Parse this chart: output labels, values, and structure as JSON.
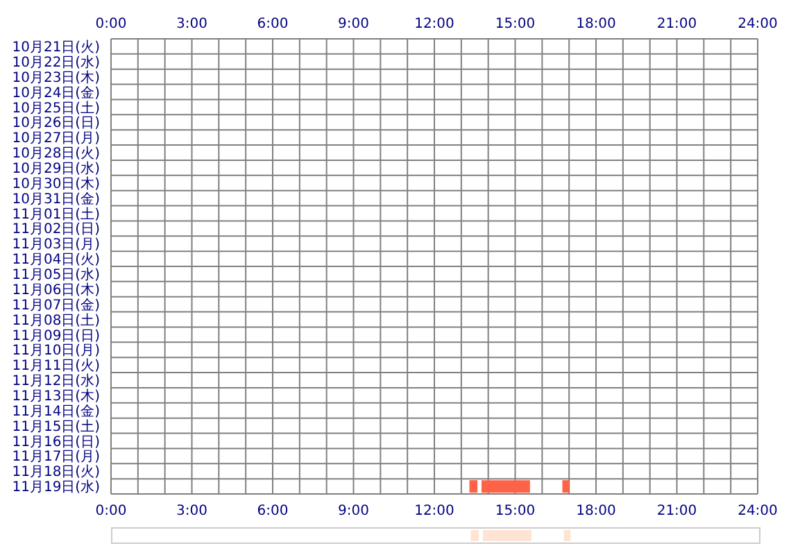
{
  "chart_data": [
    {
      "type": "bar",
      "orientation": "horizontal",
      "grid": true,
      "categories": [
        "10月21日(火)",
        "10月22日(水)",
        "10月23日(木)",
        "10月24日(金)",
        "10月25日(土)",
        "10月26日(日)",
        "10月27日(月)",
        "10月28日(火)",
        "10月29日(水)",
        "10月30日(木)",
        "10月31日(金)",
        "11月01日(土)",
        "11月02日(日)",
        "11月03日(月)",
        "11月04日(火)",
        "11月05日(水)",
        "11月06日(木)",
        "11月07日(金)",
        "11月08日(土)",
        "11月09日(日)",
        "11月10日(月)",
        "11月11日(火)",
        "11月12日(水)",
        "11月13日(木)",
        "11月14日(金)",
        "11月15日(土)",
        "11月16日(日)",
        "11月17日(月)",
        "11月18日(火)",
        "11月19日(水)"
      ],
      "xlim": [
        0,
        24
      ],
      "xticks": [
        {
          "value": 0,
          "label": "0:00"
        },
        {
          "value": 1,
          "label": null
        },
        {
          "value": 2,
          "label": null
        },
        {
          "value": 3,
          "label": "3:00"
        },
        {
          "value": 4,
          "label": null
        },
        {
          "value": 5,
          "label": null
        },
        {
          "value": 6,
          "label": "6:00"
        },
        {
          "value": 7,
          "label": null
        },
        {
          "value": 8,
          "label": null
        },
        {
          "value": 9,
          "label": "9:00"
        },
        {
          "value": 10,
          "label": null
        },
        {
          "value": 11,
          "label": null
        },
        {
          "value": 12,
          "label": "12:00"
        },
        {
          "value": 13,
          "label": null
        },
        {
          "value": 14,
          "label": null
        },
        {
          "value": 15,
          "label": "15:00"
        },
        {
          "value": 16,
          "label": null
        },
        {
          "value": 17,
          "label": null
        },
        {
          "value": 18,
          "label": "18:00"
        },
        {
          "value": 19,
          "label": null
        },
        {
          "value": 20,
          "label": null
        },
        {
          "value": 21,
          "label": "21:00"
        },
        {
          "value": 22,
          "label": null
        },
        {
          "value": 23,
          "label": null
        },
        {
          "value": 24,
          "label": "24:00"
        }
      ],
      "x2lim": [
        0,
        24
      ],
      "x2ticks": [
        {
          "value": 0,
          "label": "0:00"
        },
        {
          "value": 3,
          "label": "3:00"
        },
        {
          "value": 6,
          "label": "6:00"
        },
        {
          "value": 9,
          "label": "9:00"
        },
        {
          "value": 12,
          "label": "12:00"
        },
        {
          "value": 15,
          "label": "15:00"
        },
        {
          "value": 18,
          "label": "18:00"
        },
        {
          "value": 21,
          "label": "21:00"
        },
        {
          "value": 24,
          "label": "24:00"
        }
      ],
      "series": [
        {
          "color": "#ff6347",
          "base": [
            null,
            null,
            null,
            null,
            null,
            null,
            null,
            null,
            null,
            null,
            null,
            null,
            null,
            null,
            null,
            null,
            null,
            null,
            null,
            null,
            null,
            null,
            null,
            null,
            null,
            null,
            null,
            null,
            null,
            13.3
          ],
          "values": [
            null,
            null,
            null,
            null,
            null,
            null,
            null,
            null,
            null,
            null,
            null,
            null,
            null,
            null,
            null,
            null,
            null,
            null,
            null,
            null,
            null,
            null,
            null,
            null,
            null,
            null,
            null,
            null,
            null,
            0.3
          ]
        },
        {
          "color": "#ff6347",
          "base": [
            null,
            null,
            null,
            null,
            null,
            null,
            null,
            null,
            null,
            null,
            null,
            null,
            null,
            null,
            null,
            null,
            null,
            null,
            null,
            null,
            null,
            null,
            null,
            null,
            null,
            null,
            null,
            null,
            null,
            13.75
          ],
          "values": [
            null,
            null,
            null,
            null,
            null,
            null,
            null,
            null,
            null,
            null,
            null,
            null,
            null,
            null,
            null,
            null,
            null,
            null,
            null,
            null,
            null,
            null,
            null,
            null,
            null,
            null,
            null,
            null,
            null,
            1.8
          ]
        },
        {
          "color": "#ff6347",
          "base": [
            null,
            null,
            null,
            null,
            null,
            null,
            null,
            null,
            null,
            null,
            null,
            null,
            null,
            null,
            null,
            null,
            null,
            null,
            null,
            null,
            null,
            null,
            null,
            null,
            null,
            null,
            null,
            null,
            null,
            16.75
          ],
          "values": [
            null,
            null,
            null,
            null,
            null,
            null,
            null,
            null,
            null,
            null,
            null,
            null,
            null,
            null,
            null,
            null,
            null,
            null,
            null,
            null,
            null,
            null,
            null,
            null,
            null,
            null,
            null,
            null,
            null,
            0.25
          ]
        }
      ]
    },
    {
      "type": "bar",
      "orientation": "horizontal",
      "tick_labels": false,
      "categories": [
        null
      ],
      "xlim": [
        0,
        24
      ],
      "series": [
        {
          "color": "#ffe4d4",
          "base": [
            13.3
          ],
          "values": [
            0.3
          ]
        },
        {
          "color": "#ffe4d4",
          "base": [
            13.75
          ],
          "values": [
            1.8
          ]
        },
        {
          "color": "#ffe4d4",
          "base": [
            16.75
          ],
          "values": [
            0.25
          ]
        }
      ]
    }
  ]
}
